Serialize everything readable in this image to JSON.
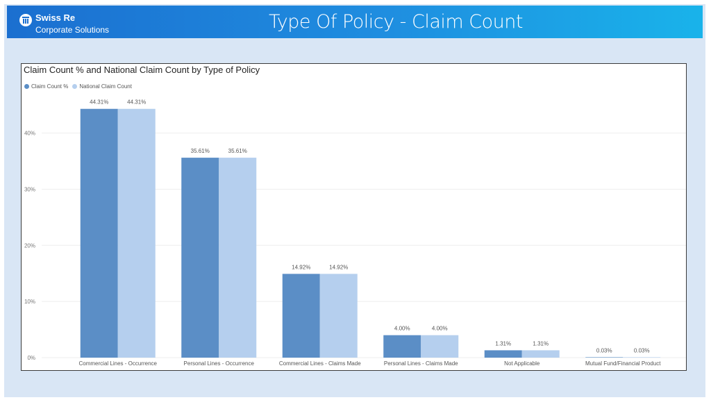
{
  "header": {
    "brand_name": "Swiss Re",
    "brand_sub": "Corporate Solutions",
    "title": "Type Of Policy - Claim Count"
  },
  "colors": {
    "header_start": "#1b6fd0",
    "header_end": "#19b3ea",
    "page_background": "#d9e6f5",
    "series_1": "#5b8ec6",
    "series_2": "#b5cfee"
  },
  "logo_icon": "swiss-re-logo-icon",
  "chart_data": {
    "type": "bar",
    "title": "Claim Count % and National Claim Count by Type of Policy",
    "legend_position": "top-left",
    "grid": true,
    "categories": [
      "Commercial Lines - Occurrence",
      "Personal Lines - Occurrence",
      "Commercial Lines - Claims Made",
      "Personal Lines - Claims Made",
      "Not Applicable",
      "Mutual Fund/Financial Product"
    ],
    "series": [
      {
        "name": "Claim Count %",
        "color": "#5b8ec6",
        "values": [
          44.31,
          35.61,
          14.92,
          4.0,
          1.31,
          0.03
        ],
        "labels": [
          "44.31%",
          "35.61%",
          "14.92%",
          "4.00%",
          "1.31%",
          "0.03%"
        ]
      },
      {
        "name": "National Claim Count",
        "color": "#b5cfee",
        "values": [
          44.31,
          35.61,
          14.92,
          4.0,
          1.31,
          0.03
        ],
        "labels": [
          "44.31%",
          "35.61%",
          "14.92%",
          "4.00%",
          "1.31%",
          "0.03%"
        ]
      }
    ],
    "yticks": [
      0,
      10,
      20,
      30,
      40
    ],
    "ytick_labels": [
      "0%",
      "10%",
      "20%",
      "30%",
      "40%"
    ],
    "ylim": [
      0,
      47
    ]
  }
}
